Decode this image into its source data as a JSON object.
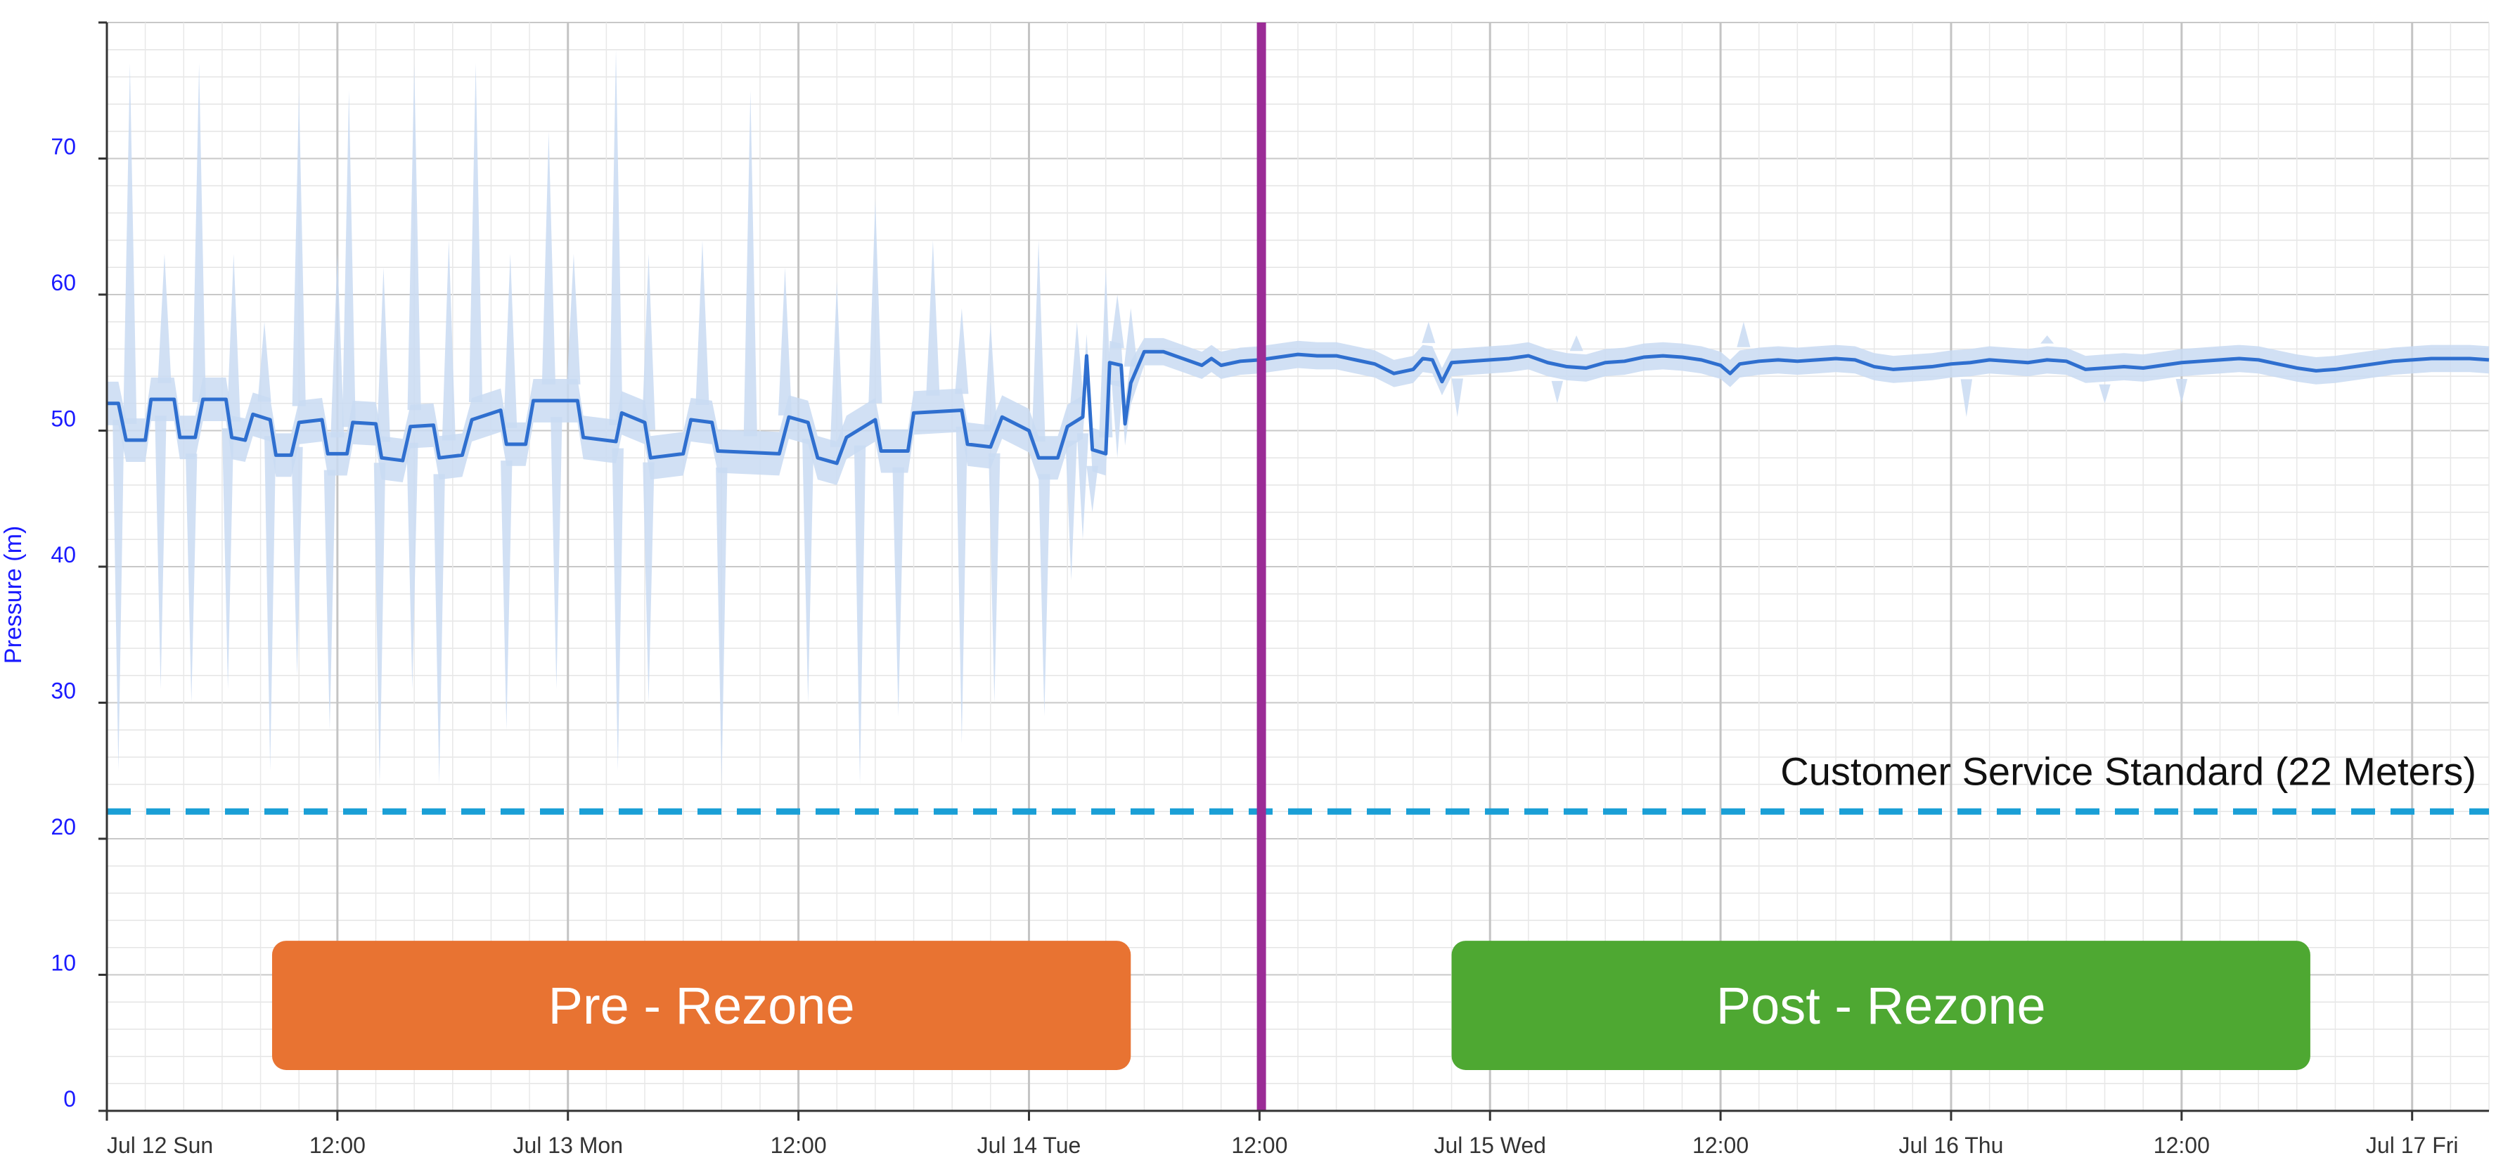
{
  "chart_data": {
    "type": "line",
    "title": "",
    "ylabel": "Pressure (m)",
    "xlabel": "",
    "ylim": [
      0,
      80
    ],
    "xlim_hours": [
      0,
      124
    ],
    "grid": "on",
    "y_ticks": [
      0,
      10,
      20,
      30,
      40,
      50,
      60,
      70
    ],
    "x_ticks": [
      {
        "hour": 0,
        "label": "Jul 12 Sun"
      },
      {
        "hour": 12,
        "label": "12:00"
      },
      {
        "hour": 24,
        "label": "Jul 13 Mon"
      },
      {
        "hour": 36,
        "label": "12:00"
      },
      {
        "hour": 48,
        "label": "Jul 14 Tue"
      },
      {
        "hour": 60,
        "label": "12:00"
      },
      {
        "hour": 72,
        "label": "Jul 15 Wed"
      },
      {
        "hour": 84,
        "label": "12:00"
      },
      {
        "hour": 96,
        "label": "Jul 16 Thu"
      },
      {
        "hour": 108,
        "label": "12:00"
      },
      {
        "hour": 120,
        "label": "Jul 17 Fri"
      }
    ],
    "series": [
      {
        "color": "#2f6fcf",
        "band_color": "#c9dbf2",
        "points": [
          [
            0.0,
            52.0
          ],
          [
            0.6,
            52.0
          ],
          [
            1.0,
            49.3
          ],
          [
            2.0,
            49.3
          ],
          [
            2.3,
            52.3
          ],
          [
            3.5,
            52.3
          ],
          [
            3.8,
            49.5
          ],
          [
            4.6,
            49.5
          ],
          [
            5.0,
            52.3
          ],
          [
            6.2,
            52.3
          ],
          [
            6.5,
            49.5
          ],
          [
            7.2,
            49.3
          ],
          [
            7.6,
            51.2
          ],
          [
            8.5,
            50.8
          ],
          [
            8.8,
            48.2
          ],
          [
            9.6,
            48.2
          ],
          [
            10.0,
            50.6
          ],
          [
            11.2,
            50.8
          ],
          [
            11.5,
            48.3
          ],
          [
            12.5,
            48.3
          ],
          [
            12.8,
            50.6
          ],
          [
            14.0,
            50.5
          ],
          [
            14.3,
            48.0
          ],
          [
            15.4,
            47.8
          ],
          [
            15.8,
            50.3
          ],
          [
            17.0,
            50.4
          ],
          [
            17.3,
            48.0
          ],
          [
            18.5,
            48.2
          ],
          [
            19.0,
            50.8
          ],
          [
            20.5,
            51.5
          ],
          [
            20.8,
            49.0
          ],
          [
            21.8,
            49.0
          ],
          [
            22.2,
            52.2
          ],
          [
            24.5,
            52.2
          ],
          [
            24.8,
            49.5
          ],
          [
            26.5,
            49.2
          ],
          [
            26.8,
            51.3
          ],
          [
            28.0,
            50.6
          ],
          [
            28.3,
            48.0
          ],
          [
            30.0,
            48.3
          ],
          [
            30.4,
            50.8
          ],
          [
            31.5,
            50.6
          ],
          [
            31.8,
            48.5
          ],
          [
            35.0,
            48.3
          ],
          [
            35.5,
            51.0
          ],
          [
            36.5,
            50.6
          ],
          [
            37.0,
            48.0
          ],
          [
            38.0,
            47.6
          ],
          [
            38.5,
            49.5
          ],
          [
            40.0,
            50.8
          ],
          [
            40.3,
            48.5
          ],
          [
            41.7,
            48.5
          ],
          [
            42.0,
            51.3
          ],
          [
            44.5,
            51.5
          ],
          [
            44.8,
            49.0
          ],
          [
            46.0,
            48.8
          ],
          [
            46.6,
            51.0
          ],
          [
            48.0,
            50.0
          ],
          [
            48.5,
            48.0
          ],
          [
            49.5,
            48.0
          ],
          [
            50.0,
            50.3
          ],
          [
            50.8,
            51.0
          ],
          [
            51.0,
            55.5
          ],
          [
            51.3,
            48.6
          ],
          [
            52.0,
            48.3
          ],
          [
            52.2,
            55.0
          ],
          [
            52.8,
            54.8
          ],
          [
            53.0,
            50.5
          ],
          [
            53.3,
            53.5
          ],
          [
            54.0,
            55.8
          ],
          [
            55.0,
            55.8
          ],
          [
            56.0,
            55.3
          ],
          [
            57.0,
            54.8
          ],
          [
            57.5,
            55.3
          ],
          [
            58.0,
            54.8
          ],
          [
            59.0,
            55.1
          ],
          [
            60.0,
            55.2
          ],
          [
            61.0,
            55.4
          ],
          [
            62.0,
            55.6
          ],
          [
            63.0,
            55.5
          ],
          [
            64.0,
            55.5
          ],
          [
            65.0,
            55.2
          ],
          [
            66.0,
            54.9
          ],
          [
            67.0,
            54.2
          ],
          [
            68.0,
            54.5
          ],
          [
            68.5,
            55.3
          ],
          [
            69.0,
            55.2
          ],
          [
            69.5,
            53.6
          ],
          [
            70.0,
            55.0
          ],
          [
            71.0,
            55.1
          ],
          [
            72.0,
            55.2
          ],
          [
            73.0,
            55.3
          ],
          [
            74.0,
            55.5
          ],
          [
            75.0,
            55.0
          ],
          [
            76.0,
            54.7
          ],
          [
            77.0,
            54.6
          ],
          [
            78.0,
            55.0
          ],
          [
            79.0,
            55.1
          ],
          [
            80.0,
            55.4
          ],
          [
            81.0,
            55.5
          ],
          [
            82.0,
            55.4
          ],
          [
            83.0,
            55.2
          ],
          [
            84.0,
            54.8
          ],
          [
            84.5,
            54.2
          ],
          [
            85.0,
            54.9
          ],
          [
            86.0,
            55.1
          ],
          [
            87.0,
            55.2
          ],
          [
            88.0,
            55.1
          ],
          [
            89.0,
            55.2
          ],
          [
            90.0,
            55.3
          ],
          [
            91.0,
            55.2
          ],
          [
            92.0,
            54.7
          ],
          [
            93.0,
            54.5
          ],
          [
            94.0,
            54.6
          ],
          [
            95.0,
            54.7
          ],
          [
            96.0,
            54.9
          ],
          [
            97.0,
            55.0
          ],
          [
            98.0,
            55.2
          ],
          [
            99.0,
            55.1
          ],
          [
            100.0,
            55.0
          ],
          [
            101.0,
            55.2
          ],
          [
            102.0,
            55.1
          ],
          [
            103.0,
            54.5
          ],
          [
            104.0,
            54.6
          ],
          [
            105.0,
            54.7
          ],
          [
            106.0,
            54.6
          ],
          [
            107.0,
            54.8
          ],
          [
            108.0,
            55.0
          ],
          [
            109.0,
            55.1
          ],
          [
            110.0,
            55.2
          ],
          [
            111.0,
            55.3
          ],
          [
            112.0,
            55.2
          ],
          [
            113.0,
            54.9
          ],
          [
            114.0,
            54.6
          ],
          [
            115.0,
            54.4
          ],
          [
            116.0,
            54.5
          ],
          [
            117.0,
            54.7
          ],
          [
            118.0,
            54.9
          ],
          [
            119.0,
            55.1
          ],
          [
            120.0,
            55.2
          ],
          [
            121.0,
            55.3
          ],
          [
            122.0,
            55.3
          ],
          [
            123.0,
            55.3
          ],
          [
            124.0,
            55.2
          ]
        ],
        "band_spikes_max": [
          [
            1.2,
            77
          ],
          [
            3.0,
            63
          ],
          [
            4.8,
            77
          ],
          [
            6.6,
            63
          ],
          [
            8.2,
            58
          ],
          [
            10.0,
            75
          ],
          [
            12.0,
            63
          ],
          [
            12.6,
            75
          ],
          [
            14.4,
            62
          ],
          [
            16.0,
            77
          ],
          [
            17.8,
            64
          ],
          [
            19.2,
            77
          ],
          [
            21.0,
            63
          ],
          [
            23.0,
            72
          ],
          [
            24.3,
            63
          ],
          [
            26.5,
            78
          ],
          [
            28.2,
            63
          ],
          [
            31.0,
            64
          ],
          [
            33.5,
            75
          ],
          [
            35.3,
            62
          ],
          [
            38.0,
            61
          ],
          [
            40.0,
            67
          ],
          [
            43.0,
            64
          ],
          [
            44.5,
            59
          ],
          [
            46.0,
            58
          ],
          [
            48.5,
            64
          ],
          [
            50.5,
            58
          ],
          [
            52.0,
            62
          ],
          [
            52.6,
            60
          ],
          [
            53.3,
            59
          ],
          [
            68.8,
            58
          ],
          [
            76.5,
            57
          ],
          [
            85.2,
            58
          ],
          [
            101.0,
            57
          ]
        ],
        "band_spikes_min": [
          [
            0.6,
            25
          ],
          [
            2.8,
            31
          ],
          [
            4.4,
            30
          ],
          [
            6.3,
            31
          ],
          [
            8.5,
            25
          ],
          [
            9.9,
            32
          ],
          [
            11.6,
            28
          ],
          [
            14.2,
            24
          ],
          [
            15.9,
            31
          ],
          [
            17.3,
            24
          ],
          [
            20.8,
            28
          ],
          [
            23.4,
            31
          ],
          [
            26.6,
            25
          ],
          [
            28.2,
            30
          ],
          [
            32.0,
            24
          ],
          [
            36.5,
            30
          ],
          [
            39.2,
            24
          ],
          [
            41.2,
            29
          ],
          [
            44.5,
            27
          ],
          [
            46.2,
            30
          ],
          [
            48.8,
            29
          ],
          [
            50.2,
            39
          ],
          [
            50.8,
            42
          ],
          [
            51.3,
            44
          ],
          [
            52.6,
            48
          ],
          [
            67.0,
            53
          ],
          [
            70.3,
            51
          ],
          [
            75.5,
            52
          ],
          [
            96.8,
            51
          ],
          [
            104.0,
            52
          ],
          [
            108.0,
            52
          ]
        ]
      }
    ],
    "reference_line": {
      "value": 22,
      "label": "Customer Service Standard (22 Meters)",
      "color": "#1a9fd6"
    },
    "event_line": {
      "hour": 60.1,
      "color": "#9b2c96"
    },
    "annotations": [
      {
        "label": "Pre - Rezone",
        "color": "#e87332",
        "x_from_hour": 8.6,
        "x_to_hour": 53.3,
        "y_from": 3.0,
        "y_to": 12.5
      },
      {
        "label": "Post - Rezone",
        "color": "#4ea832",
        "x_from_hour": 70.0,
        "x_to_hour": 114.7,
        "y_from": 3.0,
        "y_to": 12.5
      }
    ]
  }
}
